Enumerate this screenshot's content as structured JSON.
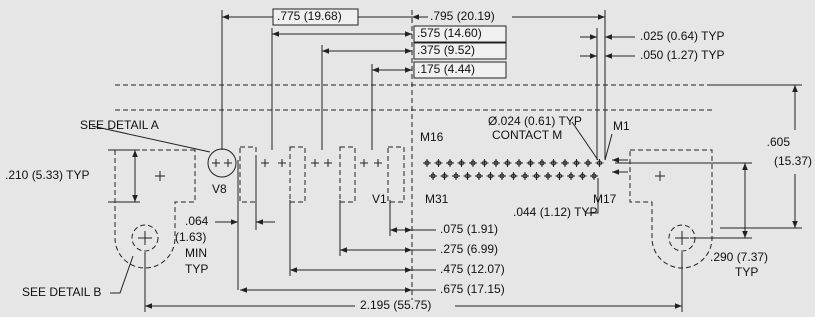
{
  "labels": [
    ".775 (19.68)",
    ".795 (20.19)",
    ".575 (14.60)",
    ".375 (9.52)",
    ".175 (4.44)",
    ".025 (0.64) TYP",
    ".050 (1.27) TYP",
    "SEE DETAIL A",
    "Ø.024 (0.61) TYP",
    "CONTACT M",
    "M1",
    "M16",
    ".605",
    "(15.37)",
    ".210 (5.33) TYP",
    "V8",
    "V1",
    "M31",
    "M17",
    ".044 (1.12) TYP",
    ".064",
    "(1.63)",
    "MIN",
    "TYP",
    ".075 (1.91)",
    ".275 (6.99)",
    ".475 (12.07)",
    ".675 (17.15)",
    ".290 (7.37)",
    "TYP",
    "SEE DETAIL B",
    "2.195 (55.75)"
  ]
}
